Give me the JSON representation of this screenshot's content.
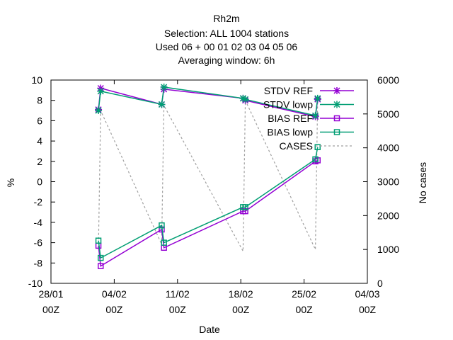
{
  "chart_data": {
    "type": "line",
    "title_lines": [
      "Rh2m",
      "Selection: ALL   1004 stations",
      "Used  06  + 00 01 02 03 04 05 06",
      "Averaging window:  6h"
    ],
    "xlabel": "Date",
    "ylabel": "%",
    "y2label": "No cases",
    "ylim": [
      -10,
      10
    ],
    "y2lim": [
      0,
      6000
    ],
    "yticks": [
      "10",
      "8",
      "6",
      "4",
      "2",
      "0",
      "-2",
      "-4",
      "-6",
      "-8",
      "-10"
    ],
    "y2ticks": [
      "6000",
      "5000",
      "4000",
      "3000",
      "2000",
      "1000",
      "0"
    ],
    "xticks": [
      {
        "line1": "28/01",
        "line2": "00Z"
      },
      {
        "line1": "04/02",
        "line2": "00Z"
      },
      {
        "line1": "11/02",
        "line2": "00Z"
      },
      {
        "line1": "18/02",
        "line2": "00Z"
      },
      {
        "line1": "25/02",
        "line2": "00Z"
      },
      {
        "line1": "04/03",
        "line2": "00Z"
      }
    ],
    "x_dates": [
      "02/02 06Z",
      "02/02 12Z",
      "09/02 06Z",
      "09/02 12Z",
      "18/02 06Z",
      "18/02 12Z",
      "26/02 06Z",
      "26/02 12Z"
    ],
    "legend_position": "top-right",
    "series": [
      {
        "name": "STDV REF",
        "color": "#9400d3",
        "marker": "star",
        "dash": false,
        "axis": "y1",
        "values": [
          7.1,
          9.2,
          7.6,
          9.1,
          8.2,
          8.0,
          6.4,
          8.1
        ]
      },
      {
        "name": "STDV lowp",
        "color": "#009e73",
        "marker": "star",
        "dash": false,
        "axis": "y1",
        "values": [
          7.0,
          8.9,
          7.6,
          9.3,
          8.2,
          8.1,
          6.5,
          8.2
        ]
      },
      {
        "name": "BIAS REF",
        "color": "#9400d3",
        "marker": "square",
        "dash": false,
        "axis": "y1",
        "values": [
          -6.3,
          -8.3,
          -4.7,
          -6.5,
          -2.9,
          -2.9,
          2.0,
          2.1
        ]
      },
      {
        "name": "BIAS lowp",
        "color": "#009e73",
        "marker": "square",
        "dash": false,
        "axis": "y1",
        "values": [
          -5.8,
          -7.5,
          -4.3,
          -6.0,
          -2.5,
          -2.5,
          2.2,
          3.4
        ]
      },
      {
        "name": "CASES",
        "color": "#a0a0a0",
        "marker": "none",
        "dash": true,
        "axis": "y2",
        "values": [
          1050,
          5100,
          1150,
          5250,
          950,
          5400,
          1000,
          5500
        ]
      }
    ]
  }
}
